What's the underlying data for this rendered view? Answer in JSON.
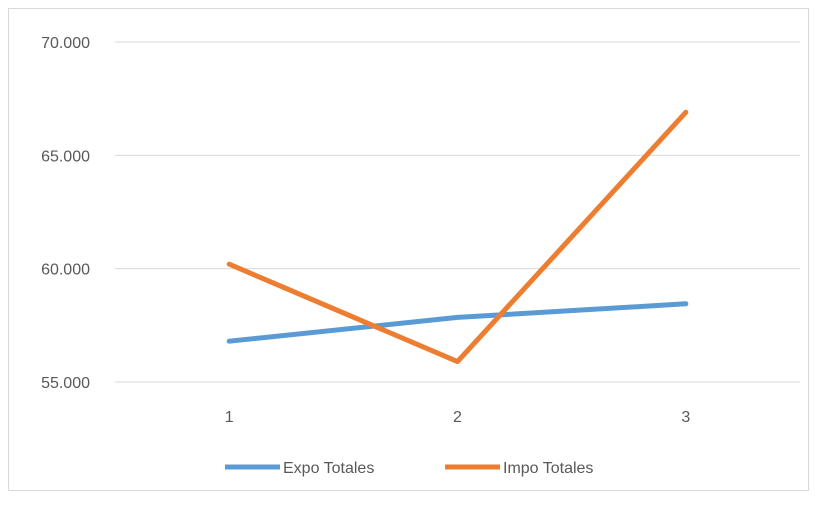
{
  "chart_data": {
    "type": "line",
    "categories": [
      "1",
      "2",
      "3"
    ],
    "series": [
      {
        "name": "Expo Totales",
        "values": [
          56800,
          57850,
          58450
        ],
        "color": "#5B9BD5"
      },
      {
        "name": "Impo Totales",
        "values": [
          60200,
          55900,
          66900
        ],
        "color": "#ED7D31"
      }
    ],
    "ylim": [
      55000,
      70000
    ],
    "yticks": [
      {
        "value": 55000,
        "label": "55.000"
      },
      {
        "value": 60000,
        "label": "60.000"
      },
      {
        "value": 65000,
        "label": "65.000"
      },
      {
        "value": 70000,
        "label": "70.000"
      }
    ],
    "grid": true,
    "legend_position": "bottom",
    "title": "",
    "xlabel": "",
    "ylabel": ""
  }
}
